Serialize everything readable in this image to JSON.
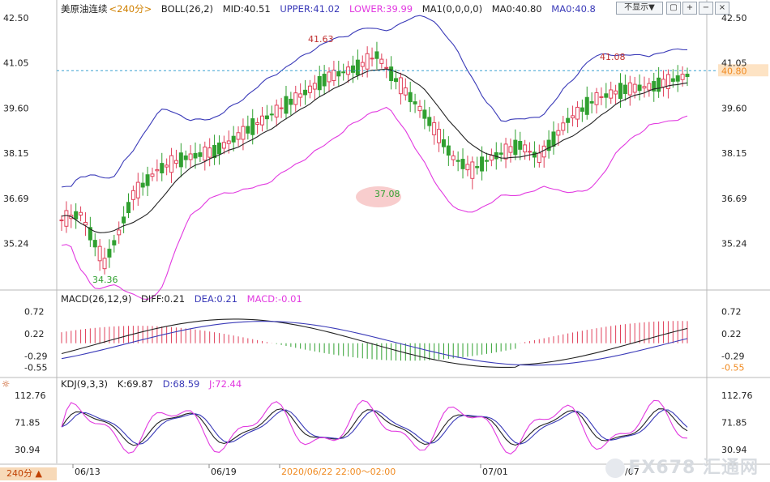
{
  "header": {
    "title": "美原油连续",
    "timeframe": "<240分>",
    "boll_label": "BOLL(26,2)",
    "mid": "MID:40.51",
    "upper": "UPPER:41.02",
    "lower": "LOWER:39.99",
    "ma_label": "MA1(0,0,0,0)",
    "ma1": "MA0:40.80",
    "ma0": "MA0:40.8",
    "dropdown": "不显示▼"
  },
  "macd_header": {
    "label": "MACD(26,12,9)",
    "diff": "DIFF:0.21",
    "dea": "DEA:0.21",
    "macd": "MACD:-0.01"
  },
  "kdj_header": {
    "label": "KDJ(9,3,3)",
    "k": "K:69.87",
    "d": "D:68.59",
    "j": "J:72.44"
  },
  "timeframe_button": "240分 ▲",
  "watermark": "FX678 汇通网",
  "colors": {
    "up": "#e0405a",
    "down": "#30a030",
    "upper": "#3a3ab8",
    "mid": "#222222",
    "lower": "#e23ae0",
    "last": "#f08a20",
    "diff": "#222222",
    "dea": "#3a3ab8"
  },
  "chart_data": {
    "type": "candlestick",
    "main": {
      "yticks": [
        "42.50",
        "41.05",
        "39.60",
        "38.15",
        "36.69",
        "35.24"
      ],
      "ylim": [
        33.8,
        42.5
      ],
      "last_price": "40.80",
      "high_label": "41.63",
      "low_label_1": "34.36",
      "low_label_2": "37.08",
      "recent_high_label": "41.08",
      "xlabels": [
        "06/13",
        "06/19",
        "2020/06/22 22:00～02:00",
        "07/01",
        "07/07"
      ]
    },
    "macd": {
      "yticks": [
        "0.72",
        "0.22",
        "-0.29",
        "-0.55"
      ],
      "ylim": [
        -0.8,
        0.9
      ]
    },
    "kdj": {
      "yticks": [
        "112.76",
        "71.85",
        "30.94"
      ],
      "ylim": [
        10,
        125
      ]
    }
  }
}
